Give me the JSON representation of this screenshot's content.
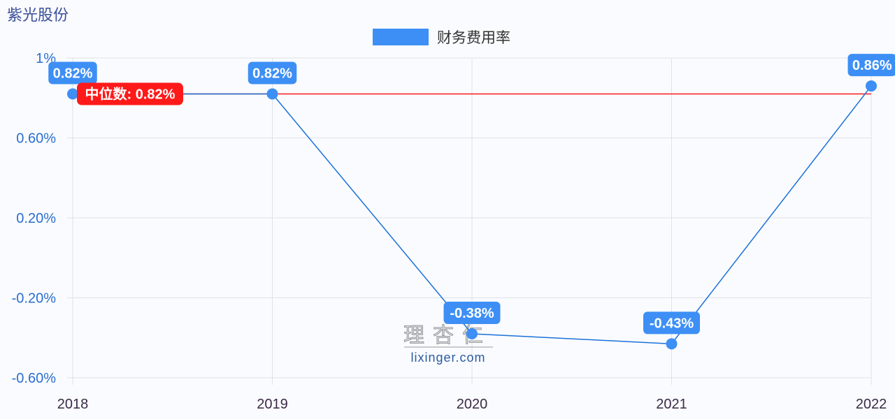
{
  "header": {
    "title": "紫光股份"
  },
  "legend": {
    "label": "财务费用率",
    "color": "#3d8ff5"
  },
  "watermark": {
    "logo": "理杏仁",
    "url": "lixinger.com"
  },
  "colors": {
    "series": "#1a72d8",
    "point": "#3d8ff5",
    "median": "#ff1a1a",
    "grid": "#dfe2ea"
  },
  "chart_data": {
    "type": "line",
    "title": "紫光股份",
    "xlabel": "",
    "ylabel": "",
    "categories": [
      "2018",
      "2019",
      "2020",
      "2021",
      "2022"
    ],
    "series": [
      {
        "name": "财务费用率",
        "values": [
          0.82,
          0.82,
          -0.38,
          -0.43,
          0.86
        ],
        "labels": [
          "0.82%",
          "0.82%",
          "-0.38%",
          "-0.43%",
          "0.86%"
        ]
      }
    ],
    "median": {
      "value": 0.82,
      "label": "中位数: 0.82%"
    },
    "yticks": [
      "1%",
      "0.60%",
      "0.20%",
      "-0.20%",
      "-0.60%"
    ],
    "ylim": [
      -0.6,
      1.0
    ],
    "grid": true,
    "legend_position": "top-center"
  }
}
